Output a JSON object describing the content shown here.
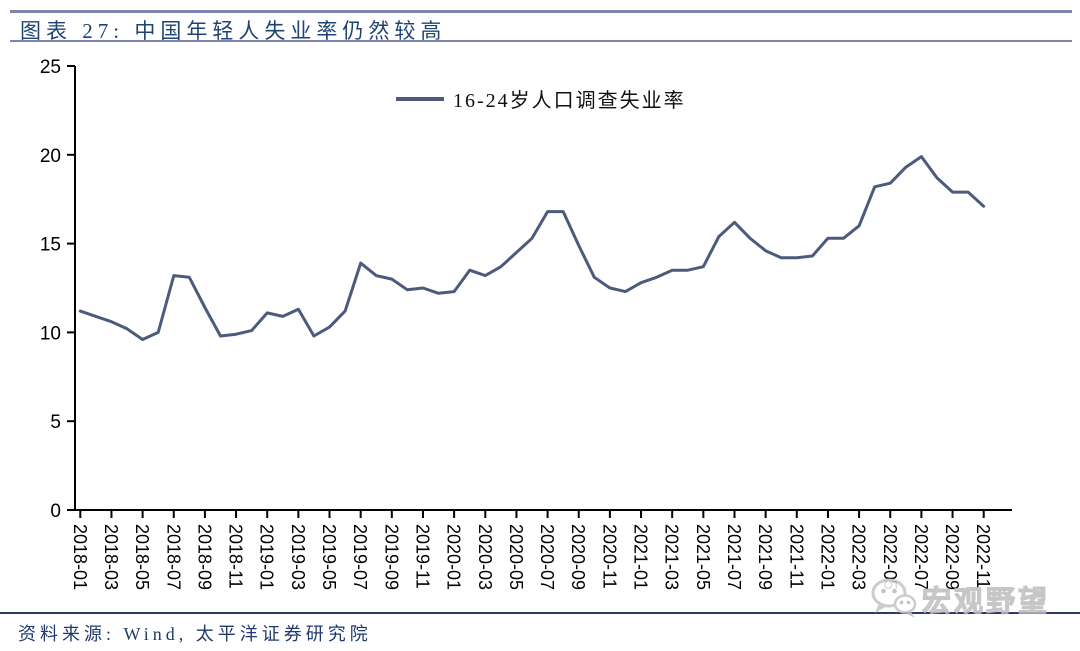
{
  "header": {
    "title": "图表 27: 中国年轻人失业率仍然较高"
  },
  "chart_data": {
    "type": "line",
    "legend": "16-24岁人口调查失业率",
    "legend_position": "top-center",
    "grid": false,
    "ylim": [
      0,
      25
    ],
    "y_ticks": [
      0,
      5,
      10,
      15,
      20,
      25
    ],
    "x_tick_interval": 2,
    "line_color": "#4c5b7c",
    "x": [
      "2018-01",
      "2018-02",
      "2018-03",
      "2018-04",
      "2018-05",
      "2018-06",
      "2018-07",
      "2018-08",
      "2018-09",
      "2018-10",
      "2018-11",
      "2018-12",
      "2019-01",
      "2019-02",
      "2019-03",
      "2019-04",
      "2019-05",
      "2019-06",
      "2019-07",
      "2019-08",
      "2019-09",
      "2019-10",
      "2019-11",
      "2019-12",
      "2020-01",
      "2020-02",
      "2020-03",
      "2020-04",
      "2020-05",
      "2020-06",
      "2020-07",
      "2020-08",
      "2020-09",
      "2020-10",
      "2020-11",
      "2020-12",
      "2021-01",
      "2021-02",
      "2021-03",
      "2021-04",
      "2021-05",
      "2021-06",
      "2021-07",
      "2021-08",
      "2021-09",
      "2021-10",
      "2021-11",
      "2021-12",
      "2022-01",
      "2022-02",
      "2022-03",
      "2022-04",
      "2022-05",
      "2022-06",
      "2022-07",
      "2022-08",
      "2022-09",
      "2022-10",
      "2022-11"
    ],
    "values": [
      11.2,
      10.9,
      10.6,
      10.2,
      9.6,
      10.0,
      13.2,
      13.1,
      11.4,
      9.8,
      9.9,
      10.1,
      11.1,
      10.9,
      11.3,
      9.8,
      10.3,
      11.2,
      13.9,
      13.2,
      13.0,
      12.4,
      12.5,
      12.2,
      12.3,
      13.5,
      13.2,
      13.7,
      14.5,
      15.3,
      16.8,
      16.8,
      14.9,
      13.1,
      12.5,
      12.3,
      12.8,
      13.1,
      13.5,
      13.5,
      13.7,
      15.4,
      16.2,
      15.3,
      14.6,
      14.2,
      14.2,
      14.3,
      15.3,
      15.3,
      16.0,
      18.2,
      18.4,
      19.3,
      19.9,
      18.7,
      17.9,
      17.9,
      17.1
    ]
  },
  "source": {
    "text": "资料来源: Wind, 太平洋证券研究院"
  },
  "watermark": {
    "label": "宏观野望",
    "icon": "wechat-icon"
  },
  "colors": {
    "title_navy": "#1f4472",
    "rule_slate": "#8083ac",
    "rule_navy": "#2e3968",
    "line": "#4c5b7c"
  }
}
